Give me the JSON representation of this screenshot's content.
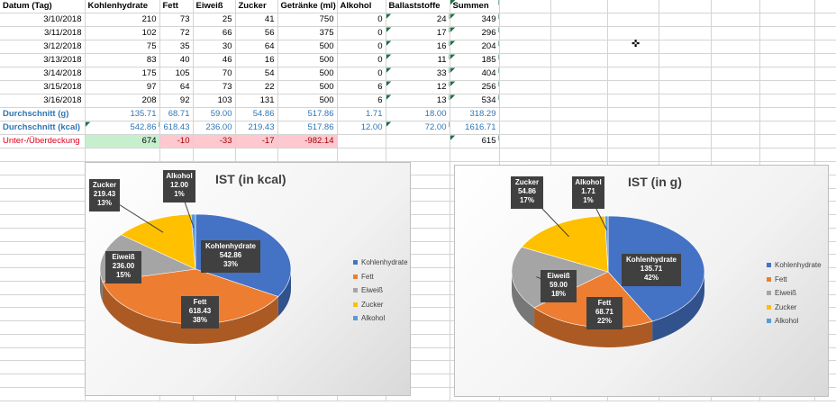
{
  "headers": [
    "Datum (Tag)",
    "Kohlenhydrate",
    "Fett",
    "Eiweiß",
    "Zucker",
    "Getränke (ml)",
    "Alkohol",
    "Ballaststoffe",
    "Summen"
  ],
  "rows": [
    [
      "3/10/2018",
      "210",
      "73",
      "25",
      "41",
      "750",
      "0",
      "24",
      "349"
    ],
    [
      "3/11/2018",
      "102",
      "72",
      "66",
      "56",
      "375",
      "0",
      "17",
      "296"
    ],
    [
      "3/12/2018",
      "75",
      "35",
      "30",
      "64",
      "500",
      "0",
      "16",
      "204"
    ],
    [
      "3/13/2018",
      "83",
      "40",
      "46",
      "16",
      "500",
      "0",
      "11",
      "185"
    ],
    [
      "3/14/2018",
      "175",
      "105",
      "70",
      "54",
      "500",
      "0",
      "33",
      "404"
    ],
    [
      "3/15/2018",
      "97",
      "64",
      "73",
      "22",
      "500",
      "6",
      "12",
      "256"
    ],
    [
      "3/16/2018",
      "208",
      "92",
      "103",
      "131",
      "500",
      "6",
      "13",
      "534"
    ]
  ],
  "avg_g": [
    "Durchschnitt (g)",
    "135.71",
    "68.71",
    "59.00",
    "54.86",
    "517.86",
    "1.71",
    "18.00",
    "318.29"
  ],
  "avg_kcal": [
    "Durchschnitt (kcal)",
    "542.86",
    "618.43",
    "236.00",
    "219.43",
    "517.86",
    "12.00",
    "72.00",
    "1616.71"
  ],
  "delta": [
    "Unter-/Überdeckung",
    "674",
    "-10",
    "-33",
    "-17",
    "-982.14",
    "",
    "",
    "615"
  ],
  "charts": [
    {
      "title": "IST (in kcal)",
      "chart_data": {
        "type": "pie",
        "title": "IST (in kcal)",
        "categories": [
          "Kohlenhydrate",
          "Fett",
          "Eiweiß",
          "Zucker",
          "Alkohol"
        ],
        "values": [
          542.86,
          618.43,
          236.0,
          219.43,
          12.0
        ],
        "percent_labels": [
          "33%",
          "38%",
          "15%",
          "13%",
          "1%"
        ],
        "value_labels": [
          "542.86",
          "618.43",
          "236.00",
          "219.43",
          "12.00"
        ],
        "colors": [
          "#4472c4",
          "#ed7d31",
          "#a5a5a5",
          "#ffc000",
          "#5b9bd5"
        ],
        "legend": "right"
      }
    },
    {
      "title": "IST (in g)",
      "chart_data": {
        "type": "pie",
        "title": "IST (in g)",
        "categories": [
          "Kohlenhydrate",
          "Fett",
          "Eiweiß",
          "Zucker",
          "Alkohol"
        ],
        "values": [
          135.71,
          68.71,
          59.0,
          54.86,
          1.71
        ],
        "percent_labels": [
          "42%",
          "22%",
          "18%",
          "17%",
          "1%"
        ],
        "value_labels": [
          "135.71",
          "68.71",
          "59.00",
          "54.86",
          "1.71"
        ],
        "colors": [
          "#4472c4",
          "#ed7d31",
          "#a5a5a5",
          "#ffc000",
          "#5b9bd5"
        ],
        "legend": "right"
      }
    }
  ]
}
